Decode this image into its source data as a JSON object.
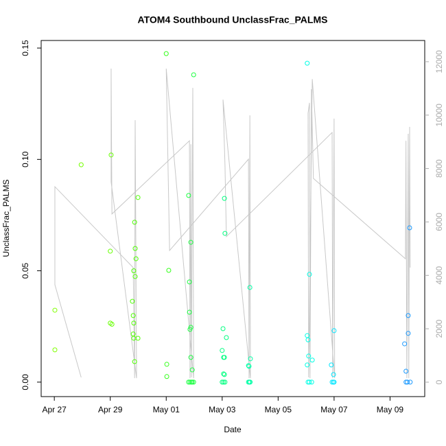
{
  "chart_data": {
    "type": "scatter",
    "title": "ATOM4 Southbound UnclassFrac_PALMS",
    "x_label": "Date",
    "y_label": "UnclassFrac_PALMS",
    "xlim": [
      -0.47,
      13.24
    ],
    "ylim": [
      -0.0065,
      0.1534
    ],
    "y2lim": [
      -540,
      12795
    ],
    "xticks": [
      {
        "value": 0,
        "label": "Apr 27"
      },
      {
        "value": 2,
        "label": "Apr 29"
      },
      {
        "value": 4,
        "label": "May 01"
      },
      {
        "value": 6,
        "label": "May 03"
      },
      {
        "value": 8,
        "label": "May 05"
      },
      {
        "value": 10,
        "label": "May 07"
      },
      {
        "value": 12,
        "label": "May 09"
      }
    ],
    "yticks": [
      {
        "value": 0,
        "label": "0.00"
      },
      {
        "value": 0.05,
        "label": "0.05"
      },
      {
        "value": 0.1,
        "label": "0.10"
      },
      {
        "value": 0.15,
        "label": "0.15"
      }
    ],
    "y2ticks": [
      0,
      2000,
      4000,
      6000,
      8000,
      10000,
      12000
    ],
    "series": [
      {
        "color": "#80ff00",
        "x": [
          0.02,
          0.02
        ],
        "values": [
          0.0323,
          0.0145
        ]
      },
      {
        "color": "#73ff00",
        "x": [
          0.96
        ],
        "values": [
          0.0976
        ]
      },
      {
        "color": "#66ff00",
        "x": [
          2.03,
          2.0,
          2.0,
          2.06
        ],
        "values": [
          0.102,
          0.0588,
          0.0265,
          0.026
        ]
      },
      {
        "color": "#4dff00",
        "x": [
          2.87,
          2.99,
          2.89,
          2.92,
          2.84,
          2.89,
          2.79,
          2.82,
          2.84,
          2.82,
          2.84,
          2.99,
          2.87
        ],
        "values": [
          0.0718,
          0.0829,
          0.06,
          0.0554,
          0.05,
          0.0474,
          0.0363,
          0.0299,
          0.0265,
          0.0216,
          0.0197,
          0.0197,
          0.0092
        ]
      },
      {
        "color": "#33ff1a",
        "x": [
          4.0,
          4.09,
          4.02,
          4.02
        ],
        "values": [
          0.1475,
          0.0502,
          0.008,
          0.0025
        ]
      },
      {
        "color": "#1aff40",
        "x": [
          4.98,
          4.8,
          4.88,
          4.83,
          4.83,
          4.88,
          4.85,
          4.88,
          4.93,
          4.8,
          4.85,
          4.9,
          4.93,
          4.98
        ],
        "values": [
          0.138,
          0.0838,
          0.0628,
          0.045,
          0.0314,
          0.0246,
          0.0237,
          0.0111,
          0.0055,
          0,
          0,
          0,
          0,
          0
        ]
      },
      {
        "color": "#00ff80",
        "x": [
          6.08,
          6.1,
          6.03,
          6.15,
          6.0,
          6.05,
          6.08,
          6.05,
          6.08,
          6.0,
          6.05,
          6.1
        ],
        "values": [
          0.0825,
          0.0668,
          0.024,
          0.02,
          0.0142,
          0.0111,
          0.0111,
          0.0037,
          0.0034,
          0,
          0,
          0
        ]
      },
      {
        "color": "#00ffa6",
        "x": [
          6.99,
          7.01,
          6.94,
          6.96,
          6.94,
          6.97,
          7.0
        ],
        "values": [
          0.0425,
          0.0105,
          0.0074,
          0.0071,
          0,
          0,
          0
        ]
      },
      {
        "color": "#00ffe6",
        "x": [
          9.04,
          9.12,
          9.04,
          9.07,
          9.09,
          9.22,
          9.04,
          9.07,
          9.12,
          9.2
        ],
        "values": [
          0.1432,
          0.0484,
          0.0209,
          0.019,
          0.0117,
          0.0099,
          0.0077,
          0,
          0,
          0
        ]
      },
      {
        "color": "#00e6ff",
        "x": [
          10.0,
          9.9,
          9.98,
          9.93,
          9.98,
          10.0
        ],
        "values": [
          0.0231,
          0.0077,
          0.0034,
          0,
          0,
          0
        ]
      },
      {
        "color": "#1a99ff",
        "x": [
          12.7,
          12.65,
          12.65,
          12.52,
          12.57,
          12.57,
          12.62,
          12.72
        ],
        "values": [
          0.0693,
          0.0299,
          0.0219,
          0.0172,
          0.0049,
          0,
          0,
          0
        ]
      },
      {
        "type": "line",
        "axis": "y2",
        "color": "#c8c8c8",
        "x": [
          0.96,
          0.02,
          0.02,
          2.82,
          2.87,
          2.89,
          2.94,
          2.03,
          2.03,
          2.06,
          4.83,
          4.85,
          4.88,
          4.9,
          4.95,
          4.98,
          4.0,
          4.12,
          6.94,
          6.96,
          6.99,
          7.01,
          6.03,
          6.1,
          6.15,
          9.93,
          9.95,
          10.0,
          10.02,
          9.22,
          9.09,
          9.07,
          9.12,
          9.14,
          9.19,
          9.26,
          12.55,
          12.57,
          12.6,
          12.65,
          12.67,
          12.7,
          12.72
        ],
        "values": [
          180,
          3650,
          7320,
          4290,
          150,
          9810,
          150,
          7500,
          11740,
          6300,
          9040,
          150,
          8910,
          180,
          11020,
          150,
          11740,
          4930,
          8350,
          150,
          9990,
          150,
          10580,
          8140,
          5450,
          9350,
          150,
          9870,
          150,
          11350,
          180,
          10070,
          10460,
          150,
          10970,
          7630,
          4620,
          9040,
          150,
          9300,
          150,
          9560,
          4290
        ]
      }
    ]
  }
}
